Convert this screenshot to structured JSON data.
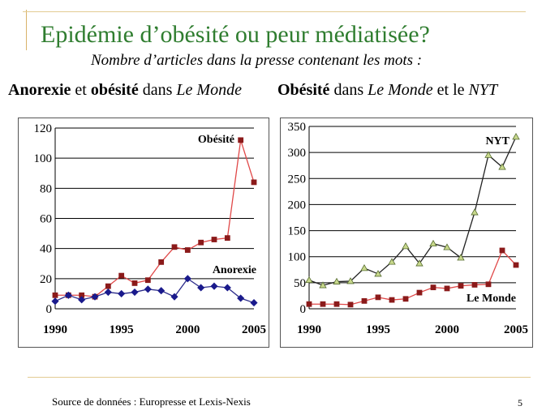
{
  "slide": {
    "title": "Epidémie d’obésité ou peur médiatisée?",
    "subtitle": "Nombre d’articles dans la presse contenant les mots :",
    "footer": "Source de données : Europresse et Lexis-Nexis",
    "page_number": "5"
  },
  "headings": {
    "left": {
      "w1": "Anorexie",
      "w2": " et ",
      "w3": "obésité",
      "w4": " dans ",
      "w5": "Le Monde"
    },
    "right": {
      "w1": "Obésité",
      "w2": " dans ",
      "w3": "Le Monde",
      "w4": " et le ",
      "w5": "NYT"
    }
  },
  "colors": {
    "red_line": "#e04848",
    "red_marker": "#8b1a1a",
    "blue_line": "#2b2b8a",
    "blue_marker": "#1a1a8c",
    "nyt_line": "#222222",
    "nyt_marker": "#c8d88c",
    "gridline": "#000000"
  },
  "chart_data": [
    {
      "type": "line",
      "x": [
        1990,
        1991,
        1992,
        1993,
        1994,
        1995,
        1996,
        1997,
        1998,
        1999,
        2000,
        2001,
        2002,
        2003,
        2004,
        2005
      ],
      "xticks": [
        1990,
        1995,
        2000,
        2005
      ],
      "yticks": [
        0,
        20,
        40,
        60,
        80,
        100,
        120
      ],
      "xlim": [
        1990,
        2005
      ],
      "ylim": [
        0,
        120
      ],
      "series": [
        {
          "name": "Obésité",
          "color_key": "red",
          "marker": "square",
          "values": [
            9,
            9,
            9,
            8,
            15,
            22,
            17,
            19,
            31,
            41,
            39,
            44,
            46,
            47,
            112,
            84
          ]
        },
        {
          "name": "Anorexie",
          "color_key": "blue",
          "marker": "diamond",
          "values": [
            5,
            9,
            6,
            8,
            11,
            10,
            11,
            13,
            12,
            8,
            20,
            14,
            15,
            14,
            7,
            4
          ]
        }
      ],
      "grid": true
    },
    {
      "type": "line",
      "x": [
        1990,
        1991,
        1992,
        1993,
        1994,
        1995,
        1996,
        1997,
        1998,
        1999,
        2000,
        2001,
        2002,
        2003,
        2004,
        2005
      ],
      "xticks": [
        1990,
        1995,
        2000,
        2005
      ],
      "yticks": [
        0,
        50,
        100,
        150,
        200,
        250,
        300,
        350
      ],
      "xlim": [
        1990,
        2005
      ],
      "ylim": [
        0,
        350
      ],
      "series": [
        {
          "name": "NYT",
          "color_key": "nyt",
          "marker": "triangle",
          "values": [
            55,
            45,
            52,
            53,
            78,
            67,
            90,
            120,
            87,
            125,
            118,
            98,
            185,
            295,
            272,
            330
          ]
        },
        {
          "name": "Le Monde",
          "color_key": "red",
          "marker": "square",
          "values": [
            9,
            9,
            9,
            8,
            15,
            22,
            17,
            19,
            31,
            41,
            39,
            44,
            46,
            47,
            112,
            84
          ]
        }
      ],
      "grid": true
    }
  ]
}
